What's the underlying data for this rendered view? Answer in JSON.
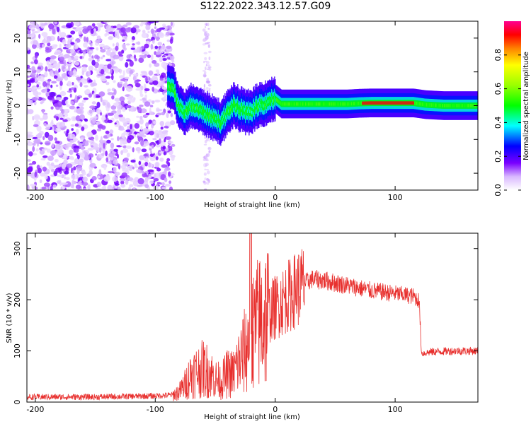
{
  "title": "S122.2022.343.12.57.G09",
  "chart_data": [
    {
      "type": "heatmap",
      "xlabel": "Height of straight line (km)",
      "ylabel": "Frequency (Hz)",
      "xlim": [
        -207,
        169
      ],
      "ylim": [
        -25,
        25
      ],
      "xticks": [
        -200,
        -100,
        0,
        100
      ],
      "yticks": [
        -20,
        -10,
        0,
        10,
        20
      ],
      "colorbar": {
        "label": "Normalized spectral amplitude",
        "range": [
          0,
          1
        ],
        "ticks": [
          0.0,
          0.2,
          0.4,
          0.6,
          0.8
        ]
      },
      "ridge": {
        "x": [
          -88,
          -85,
          -80,
          -75,
          -70,
          -65,
          -60,
          -55,
          -50,
          -45,
          -42,
          -38,
          -35,
          -30,
          -25,
          -22,
          -18,
          -15,
          -10,
          -5,
          0,
          5,
          10,
          20,
          40,
          60,
          70,
          80,
          100,
          115,
          125,
          140,
          169
        ],
        "y": [
          6,
          5,
          -1,
          -2,
          0,
          -1,
          -2,
          -3,
          -4,
          -5,
          -3,
          -1,
          0,
          -1,
          -2,
          -2,
          -1,
          0,
          0.5,
          1.5,
          2,
          0.5,
          0.5,
          0.5,
          0.5,
          0.5,
          0.7,
          0.8,
          0.8,
          0.8,
          0.3,
          0,
          0
        ]
      }
    },
    {
      "type": "line",
      "xlabel": "Height of straight line (km)",
      "ylabel": "SNR (10 * v/v)",
      "xlim": [
        -207,
        169
      ],
      "ylim": [
        0,
        330
      ],
      "xticks": [
        -200,
        -100,
        0,
        100
      ],
      "yticks": [
        0,
        100,
        200,
        300
      ],
      "color": "#e8302e",
      "envelope": {
        "x": [
          -207,
          -150,
          -100,
          -85,
          -80,
          -75,
          -70,
          -65,
          -60,
          -55,
          -50,
          -45,
          -40,
          -35,
          -30,
          -25,
          -20,
          -15,
          -10,
          -5,
          0,
          10,
          20,
          30,
          40,
          60,
          80,
          100,
          115,
          120,
          122,
          130,
          150,
          169
        ],
        "y": [
          10,
          10,
          12,
          14,
          20,
          35,
          55,
          60,
          65,
          60,
          45,
          40,
          55,
          55,
          80,
          100,
          130,
          150,
          165,
          175,
          185,
          205,
          225,
          240,
          238,
          228,
          218,
          212,
          207,
          198,
          95,
          98,
          100,
          100
        ]
      }
    }
  ]
}
